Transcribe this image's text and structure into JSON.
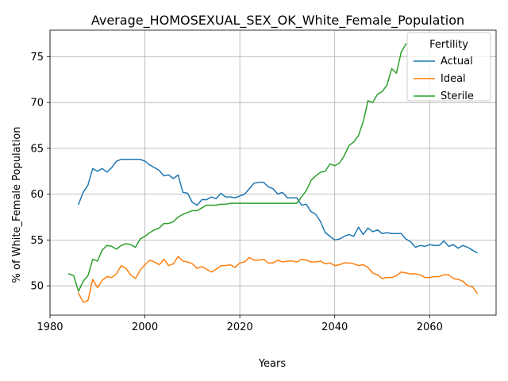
{
  "chart_data": {
    "type": "line",
    "title": "Average_HOMOSEXUAL_SEX_OK_White_Female_Population",
    "xlabel": "Years",
    "ylabel": "% of White_Female Population",
    "xlim": [
      1980,
      2074
    ],
    "ylim": [
      46.8,
      77.9
    ],
    "xticks": [
      1980,
      2000,
      2020,
      2040,
      2060
    ],
    "yticks": [
      50,
      55,
      60,
      65,
      70,
      75
    ],
    "grid": true,
    "legend": {
      "title": "Fertility",
      "placement": "top-right"
    },
    "series": [
      {
        "name": "Actual",
        "color": "#1f77b4",
        "points": [
          [
            1986,
            58.9
          ],
          [
            1987,
            60.2
          ],
          [
            1988,
            61.0
          ],
          [
            1989,
            62.8
          ],
          [
            1990,
            62.5
          ],
          [
            1991,
            62.8
          ],
          [
            1992,
            62.4
          ],
          [
            1993,
            62.9
          ],
          [
            1994,
            63.6
          ],
          [
            1995,
            63.8
          ],
          [
            1996,
            63.8
          ],
          [
            1997,
            63.8
          ],
          [
            1998,
            63.8
          ],
          [
            1999,
            63.8
          ],
          [
            2000,
            63.6
          ],
          [
            2001,
            63.2
          ],
          [
            2002,
            62.9
          ],
          [
            2003,
            62.6
          ],
          [
            2004,
            62.0
          ],
          [
            2005,
            62.1
          ],
          [
            2006,
            61.7
          ],
          [
            2007,
            62.1
          ],
          [
            2008,
            60.2
          ],
          [
            2009,
            60.1
          ],
          [
            2010,
            59.1
          ],
          [
            2011,
            58.8
          ],
          [
            2012,
            59.4
          ],
          [
            2013,
            59.4
          ],
          [
            2014,
            59.7
          ],
          [
            2015,
            59.5
          ],
          [
            2016,
            60.1
          ],
          [
            2017,
            59.7
          ],
          [
            2018,
            59.7
          ],
          [
            2019,
            59.6
          ],
          [
            2020,
            59.8
          ],
          [
            2021,
            60.0
          ],
          [
            2022,
            60.6
          ],
          [
            2023,
            61.2
          ],
          [
            2024,
            61.3
          ],
          [
            2025,
            61.3
          ],
          [
            2026,
            60.8
          ],
          [
            2027,
            60.6
          ],
          [
            2028,
            60.0
          ],
          [
            2029,
            60.2
          ],
          [
            2030,
            59.6
          ],
          [
            2031,
            59.6
          ],
          [
            2032,
            59.6
          ],
          [
            2033,
            58.8
          ],
          [
            2034,
            58.9
          ],
          [
            2035,
            58.1
          ],
          [
            2036,
            57.8
          ],
          [
            2037,
            57.0
          ],
          [
            2038,
            55.8
          ],
          [
            2039,
            55.4
          ],
          [
            2040,
            55.0
          ],
          [
            2041,
            55.1
          ],
          [
            2042,
            55.4
          ],
          [
            2043,
            55.6
          ],
          [
            2044,
            55.4
          ],
          [
            2045,
            56.4
          ],
          [
            2046,
            55.6
          ],
          [
            2047,
            56.3
          ],
          [
            2048,
            55.9
          ],
          [
            2049,
            56.1
          ],
          [
            2050,
            55.7
          ],
          [
            2051,
            55.8
          ],
          [
            2052,
            55.7
          ],
          [
            2053,
            55.7
          ],
          [
            2054,
            55.7
          ],
          [
            2055,
            55.1
          ],
          [
            2056,
            54.8
          ],
          [
            2057,
            54.2
          ],
          [
            2058,
            54.4
          ],
          [
            2059,
            54.3
          ],
          [
            2060,
            54.5
          ],
          [
            2061,
            54.4
          ],
          [
            2062,
            54.4
          ],
          [
            2063,
            54.9
          ],
          [
            2064,
            54.3
          ],
          [
            2065,
            54.5
          ],
          [
            2066,
            54.1
          ],
          [
            2067,
            54.4
          ],
          [
            2068,
            54.2
          ],
          [
            2069,
            53.9
          ],
          [
            2070,
            53.6
          ]
        ]
      },
      {
        "name": "Ideal",
        "color": "#ff7f0e",
        "points": [
          [
            1986,
            49.2
          ],
          [
            1987,
            48.2
          ],
          [
            1988,
            48.4
          ],
          [
            1989,
            50.7
          ],
          [
            1990,
            49.8
          ],
          [
            1991,
            50.6
          ],
          [
            1992,
            51.0
          ],
          [
            1993,
            50.9
          ],
          [
            1994,
            51.3
          ],
          [
            1995,
            52.2
          ],
          [
            1996,
            51.9
          ],
          [
            1997,
            51.2
          ],
          [
            1998,
            50.8
          ],
          [
            1999,
            51.7
          ],
          [
            2000,
            52.3
          ],
          [
            2001,
            52.8
          ],
          [
            2002,
            52.6
          ],
          [
            2003,
            52.3
          ],
          [
            2004,
            52.9
          ],
          [
            2005,
            52.2
          ],
          [
            2006,
            52.4
          ],
          [
            2007,
            53.2
          ],
          [
            2008,
            52.7
          ],
          [
            2009,
            52.6
          ],
          [
            2010,
            52.4
          ],
          [
            2011,
            51.9
          ],
          [
            2012,
            52.1
          ],
          [
            2013,
            51.8
          ],
          [
            2014,
            51.5
          ],
          [
            2015,
            51.8
          ],
          [
            2016,
            52.2
          ],
          [
            2017,
            52.2
          ],
          [
            2018,
            52.3
          ],
          [
            2019,
            52.0
          ],
          [
            2020,
            52.5
          ],
          [
            2021,
            52.6
          ],
          [
            2022,
            53.1
          ],
          [
            2023,
            52.8
          ],
          [
            2024,
            52.8
          ],
          [
            2025,
            52.9
          ],
          [
            2026,
            52.5
          ],
          [
            2027,
            52.5
          ],
          [
            2028,
            52.8
          ],
          [
            2029,
            52.6
          ],
          [
            2030,
            52.7
          ],
          [
            2031,
            52.7
          ],
          [
            2032,
            52.6
          ],
          [
            2033,
            52.9
          ],
          [
            2034,
            52.8
          ],
          [
            2035,
            52.6
          ],
          [
            2036,
            52.6
          ],
          [
            2037,
            52.7
          ],
          [
            2038,
            52.4
          ],
          [
            2039,
            52.5
          ],
          [
            2040,
            52.2
          ],
          [
            2041,
            52.3
          ],
          [
            2042,
            52.5
          ],
          [
            2043,
            52.5
          ],
          [
            2044,
            52.4
          ],
          [
            2045,
            52.2
          ],
          [
            2046,
            52.3
          ],
          [
            2047,
            52.0
          ],
          [
            2048,
            51.4
          ],
          [
            2049,
            51.2
          ],
          [
            2050,
            50.8
          ],
          [
            2051,
            50.9
          ],
          [
            2052,
            50.9
          ],
          [
            2053,
            51.1
          ],
          [
            2054,
            51.5
          ],
          [
            2055,
            51.4
          ],
          [
            2056,
            51.3
          ],
          [
            2057,
            51.3
          ],
          [
            2058,
            51.2
          ],
          [
            2059,
            50.9
          ],
          [
            2060,
            50.9
          ],
          [
            2061,
            51.0
          ],
          [
            2062,
            51.0
          ],
          [
            2063,
            51.2
          ],
          [
            2064,
            51.2
          ],
          [
            2065,
            50.8
          ],
          [
            2066,
            50.7
          ],
          [
            2067,
            50.5
          ],
          [
            2068,
            50.0
          ],
          [
            2069,
            49.9
          ],
          [
            2070,
            49.2
          ]
        ]
      },
      {
        "name": "Sterile",
        "color": "#2ca02c",
        "points": [
          [
            1984,
            51.3
          ],
          [
            1985,
            51.1
          ],
          [
            1986,
            49.4
          ],
          [
            1987,
            50.5
          ],
          [
            1988,
            51.1
          ],
          [
            1989,
            52.9
          ],
          [
            1990,
            52.7
          ],
          [
            1991,
            53.9
          ],
          [
            1992,
            54.4
          ],
          [
            1993,
            54.3
          ],
          [
            1994,
            54.0
          ],
          [
            1995,
            54.4
          ],
          [
            1996,
            54.6
          ],
          [
            1997,
            54.5
          ],
          [
            1998,
            54.2
          ],
          [
            1999,
            55.1
          ],
          [
            2000,
            55.4
          ],
          [
            2001,
            55.8
          ],
          [
            2002,
            56.1
          ],
          [
            2003,
            56.3
          ],
          [
            2004,
            56.8
          ],
          [
            2005,
            56.8
          ],
          [
            2006,
            57.0
          ],
          [
            2007,
            57.5
          ],
          [
            2008,
            57.8
          ],
          [
            2009,
            58.0
          ],
          [
            2010,
            58.2
          ],
          [
            2011,
            58.2
          ],
          [
            2012,
            58.5
          ],
          [
            2013,
            58.8
          ],
          [
            2014,
            58.8
          ],
          [
            2015,
            58.8
          ],
          [
            2016,
            58.9
          ],
          [
            2017,
            58.9
          ],
          [
            2018,
            59.0
          ],
          [
            2019,
            59.0
          ],
          [
            2020,
            59.0
          ],
          [
            2021,
            59.0
          ],
          [
            2022,
            59.0
          ],
          [
            2023,
            59.0
          ],
          [
            2024,
            59.0
          ],
          [
            2025,
            59.0
          ],
          [
            2026,
            59.0
          ],
          [
            2027,
            59.0
          ],
          [
            2028,
            59.0
          ],
          [
            2029,
            59.0
          ],
          [
            2030,
            59.0
          ],
          [
            2031,
            59.0
          ],
          [
            2032,
            59.0
          ],
          [
            2033,
            59.7
          ],
          [
            2034,
            60.4
          ],
          [
            2035,
            61.5
          ],
          [
            2036,
            62.0
          ],
          [
            2037,
            62.4
          ],
          [
            2038,
            62.5
          ],
          [
            2039,
            63.3
          ],
          [
            2040,
            63.1
          ],
          [
            2041,
            63.4
          ],
          [
            2042,
            64.2
          ],
          [
            2043,
            65.3
          ],
          [
            2044,
            65.7
          ],
          [
            2045,
            66.4
          ],
          [
            2046,
            67.9
          ],
          [
            2047,
            70.2
          ],
          [
            2048,
            70.0
          ],
          [
            2049,
            70.9
          ],
          [
            2050,
            71.2
          ],
          [
            2051,
            71.9
          ],
          [
            2052,
            73.7
          ],
          [
            2053,
            73.2
          ],
          [
            2054,
            75.5
          ],
          [
            2055,
            76.4
          ]
        ]
      }
    ]
  }
}
